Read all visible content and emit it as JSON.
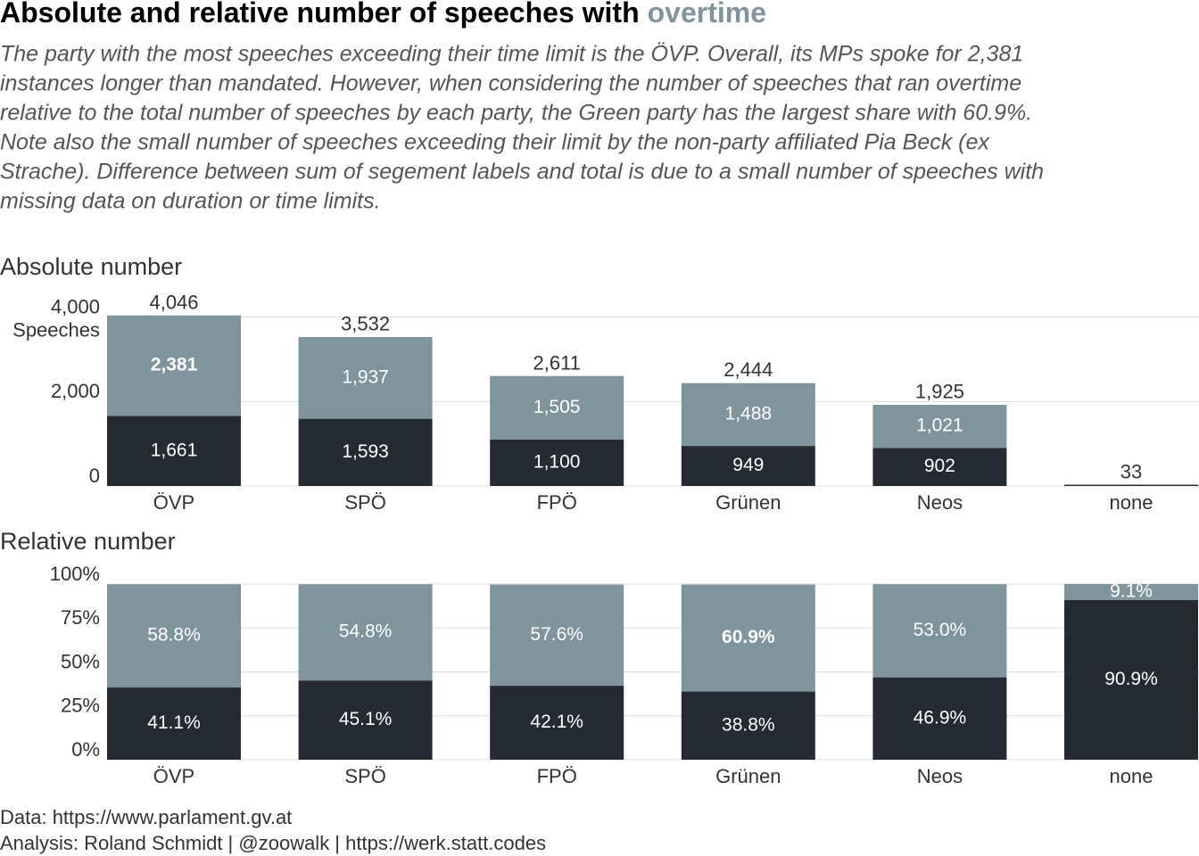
{
  "title": "Absolute and relative number of speeches with",
  "title_highlight": "overtime",
  "subtitle": [
    "The party with the most speeches exceeding their time limit is the ÖVP. Overall, its MPs spoke for 2,381",
    "instances longer than mandated. However, when considering the number of speeches that ran overtime",
    "relative to the total number of speeches by each party, the Green party has the largest share with 60.9%.",
    "Note also the small number of speeches exceeding their limit by the non-party affiliated Pia Beck (ex",
    "Strache). Difference between sum of segement labels and total is due to a small number of speeches with",
    "missing data on duration or time limits."
  ],
  "caption": [
    "Data: https://www.parlament.gv.at",
    "Analysis: Roland Schmidt | @zoowalk | https://werk.statt.codes"
  ],
  "chart_data": [
    {
      "type": "bar",
      "stacked": true,
      "title": "Absolute number",
      "y_label": "Speeches",
      "categories": [
        "ÖVP",
        "SPÖ",
        "FPÖ",
        "Grünen",
        "Neos",
        "none"
      ],
      "series": [
        {
          "color": "#262a32",
          "values": [
            1661,
            1593,
            1100,
            949,
            902,
            30
          ],
          "value_labels": [
            "1,661",
            "1,593",
            "1,100",
            "949",
            "902",
            null
          ]
        },
        {
          "color": "#7f959d",
          "values": [
            2381,
            1937,
            1505,
            1488,
            1021,
            3
          ],
          "value_labels": [
            "2,381",
            "1,937",
            "1,505",
            "1,488",
            "1,021",
            null
          ]
        }
      ],
      "totals": [
        4046,
        3532,
        2611,
        2444,
        1925,
        33
      ],
      "total_labels": [
        "4,046",
        "3,532",
        "2,611",
        "2,444",
        "1,925",
        "33"
      ],
      "emphasis": {
        "series": 1,
        "index": 0
      },
      "ylim": [
        0,
        4100
      ],
      "yticks": [
        0,
        {
          "value": 2000,
          "label": "2,000"
        },
        {
          "value": 4000,
          "label": "4,000"
        }
      ],
      "grid": true
    },
    {
      "type": "bar",
      "stacked": true,
      "title": "Relative number",
      "categories": [
        "ÖVP",
        "SPÖ",
        "FPÖ",
        "Grünen",
        "Neos",
        "none"
      ],
      "series": [
        {
          "color": "#262a32",
          "values": [
            41.1,
            45.1,
            42.1,
            38.8,
            46.9,
            90.9
          ],
          "value_labels": [
            "41.1%",
            "45.1%",
            "42.1%",
            "38.8%",
            "46.9%",
            "90.9%"
          ]
        },
        {
          "color": "#7f959d",
          "values": [
            58.8,
            54.8,
            57.6,
            60.9,
            53.0,
            9.1
          ],
          "value_labels": [
            "58.8%",
            "54.8%",
            "57.6%",
            "60.9%",
            "53.0%",
            "9.1%"
          ]
        }
      ],
      "emphasis": {
        "series": 1,
        "index": 3
      },
      "ylim": [
        0,
        100
      ],
      "yticks": [
        {
          "value": 0,
          "label": "0%"
        },
        {
          "value": 25,
          "label": "25%"
        },
        {
          "value": 50,
          "label": "50%"
        },
        {
          "value": 75,
          "label": "75%"
        },
        {
          "value": 100,
          "label": "100%"
        }
      ],
      "grid": true
    }
  ]
}
